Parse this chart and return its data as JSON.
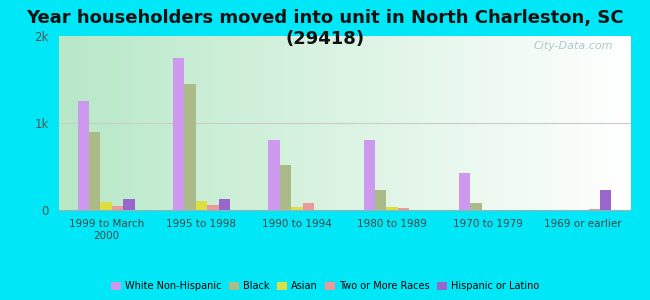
{
  "title": "Year householders moved into unit in North Charleston, SC (29418)",
  "categories": [
    "1999 to March\n2000",
    "1995 to 1998",
    "1990 to 1994",
    "1980 to 1989",
    "1970 to 1979",
    "1969 or earlier"
  ],
  "series": {
    "White Non-Hispanic": [
      1250,
      1750,
      800,
      800,
      420,
      0
    ],
    "Black": [
      900,
      1450,
      520,
      230,
      80,
      0
    ],
    "Asian": [
      90,
      100,
      30,
      30,
      0,
      0
    ],
    "Two or More Races": [
      50,
      60,
      80,
      20,
      0,
      10
    ],
    "Hispanic or Latino": [
      130,
      130,
      0,
      0,
      0,
      230
    ]
  },
  "colors": {
    "White Non-Hispanic": "#cc99ee",
    "Black": "#aabb88",
    "Asian": "#dddd44",
    "Two or More Races": "#ee9999",
    "Hispanic or Latino": "#9966cc"
  },
  "ylim": [
    0,
    2000
  ],
  "yticks": [
    0,
    1000,
    2000
  ],
  "ytick_labels": [
    "0",
    "1k",
    "2k"
  ],
  "plot_bg_left": "#c0f0d8",
  "plot_bg_right": "#f0fff8",
  "outer_background": "#00e8f8",
  "title_fontsize": 13,
  "watermark": "City-Data.com"
}
